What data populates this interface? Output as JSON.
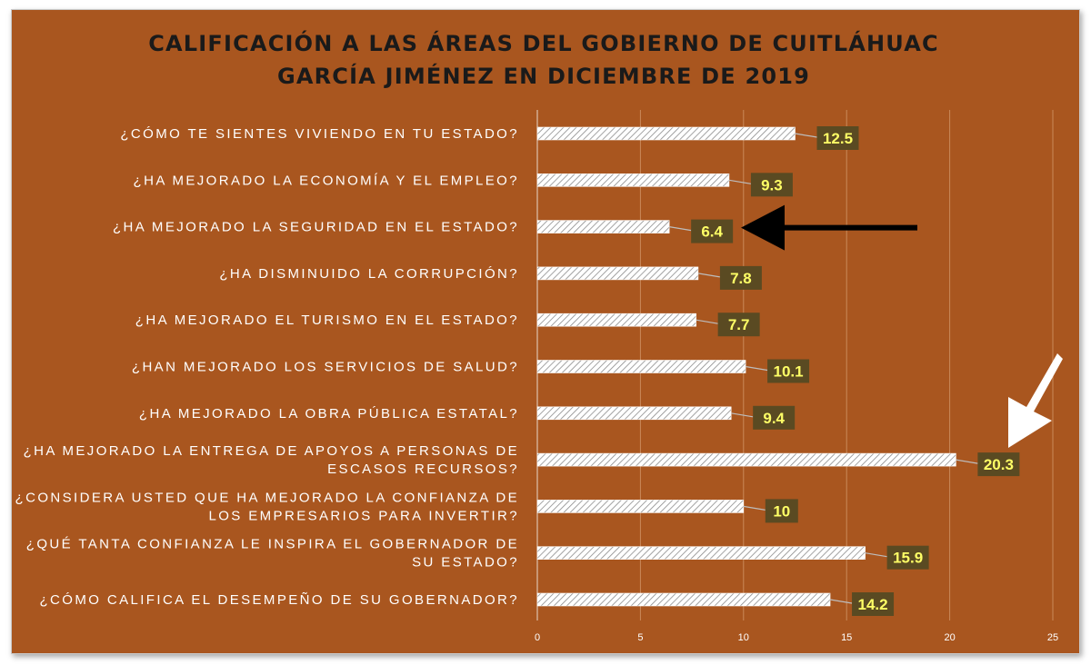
{
  "chart_data": {
    "type": "bar",
    "orientation": "horizontal",
    "title": "CALIFICACIÓN A LAS ÁREAS DEL GOBIERNO DE CUITLÁHUAC GARCÍA JIMÉNEZ EN DICIEMBRE DE 2019",
    "title_lines": [
      "CALIFICACIÓN A LAS ÁREAS DEL GOBIERNO DE CUITLÁHUAC",
      "GARCÍA JIMÉNEZ EN DICIEMBRE DE 2019"
    ],
    "categories": [
      "¿CÓMO TE SIENTES VIVIENDO EN TU ESTADO?",
      "¿HA MEJORADO LA ECONOMÍA Y EL EMPLEO?",
      "¿HA MEJORADO LA SEGURIDAD EN EL ESTADO?",
      "¿HA DISMINUIDO LA CORRUPCIÓN?",
      "¿HA MEJORADO EL TURISMO EN EL ESTADO?",
      "¿HAN MEJORADO LOS SERVICIOS DE SALUD?",
      "¿HA MEJORADO LA OBRA PÚBLICA ESTATAL?",
      "¿HA MEJORADO LA ENTREGA DE APOYOS A PERSONAS DE ESCASOS RECURSOS?",
      "¿CONSIDERA USTED QUE HA MEJORADO LA CONFIANZA DE LOS EMPRESARIOS PARA INVERTIR?",
      "¿QUÉ TANTA CONFIANZA LE INSPIRA EL GOBERNADOR DE SU ESTADO?",
      "¿CÓMO CALIFICA EL DESEMPEÑO DE SU GOBERNADOR?"
    ],
    "category_lines": [
      [
        "¿CÓMO TE SIENTES VIVIENDO EN TU ESTADO?"
      ],
      [
        "¿HA MEJORADO LA ECONOMÍA Y EL EMPLEO?"
      ],
      [
        "¿HA MEJORADO LA SEGURIDAD EN EL ESTADO?"
      ],
      [
        "¿HA DISMINUIDO LA CORRUPCIÓN?"
      ],
      [
        "¿HA MEJORADO EL TURISMO EN EL ESTADO?"
      ],
      [
        "¿HAN MEJORADO LOS SERVICIOS DE SALUD?"
      ],
      [
        "¿HA MEJORADO LA OBRA PÚBLICA ESTATAL?"
      ],
      [
        "¿HA MEJORADO LA ENTREGA DE APOYOS A PERSONAS DE",
        "ESCASOS RECURSOS?"
      ],
      [
        "¿CONSIDERA USTED QUE HA MEJORADO LA CONFIANZA DE",
        "LOS EMPRESARIOS PARA INVERTIR?"
      ],
      [
        "¿QUÉ TANTA CONFIANZA LE INSPIRA EL GOBERNADOR DE",
        "SU ESTADO?"
      ],
      [
        "¿CÓMO CALIFICA EL DESEMPEÑO DE SU GOBERNADOR?"
      ]
    ],
    "values": [
      12.5,
      9.3,
      6.4,
      7.8,
      7.7,
      10.1,
      9.4,
      20.3,
      10,
      15.9,
      14.2
    ],
    "data_labels": [
      "12.5",
      "9.3",
      "6.4",
      "7.8",
      "7.7",
      "10.1",
      "9.4",
      "20.3",
      "10",
      "15.9",
      "14.2"
    ],
    "xlim": [
      0,
      25
    ],
    "xticks": [
      0,
      5,
      10,
      15,
      20,
      25
    ],
    "xlabel": "",
    "ylabel": "",
    "grid": true,
    "legend": "none",
    "annotations": [
      {
        "type": "arrow",
        "color": "#000000",
        "points_to_category_index": 2
      },
      {
        "type": "arrow",
        "color": "#ffffff",
        "points_to_category_index": 7
      }
    ]
  },
  "colors": {
    "background": "#a9561f",
    "title": "#1a1a1a",
    "text": "#ffffff",
    "bar_fill": "#ffffff",
    "bar_hatch": "#9a9a9a",
    "label_box": "#5a4a22",
    "label_text": "#ffff66",
    "gridline": "#c98a5a"
  }
}
